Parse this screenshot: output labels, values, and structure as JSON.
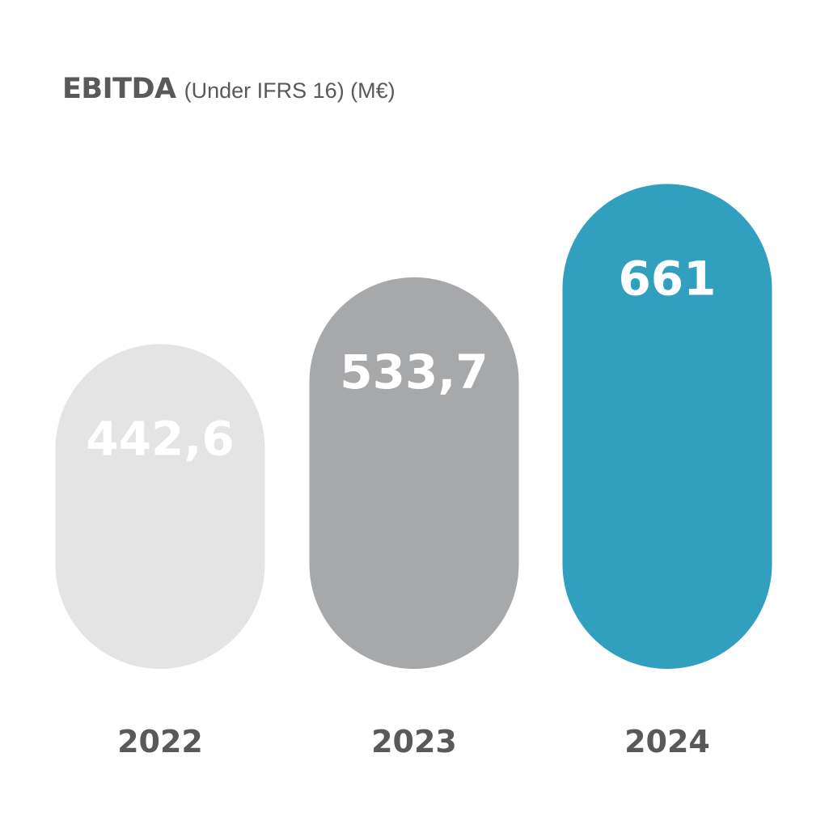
{
  "chart_data": {
    "type": "bar",
    "title": "EBITDA",
    "subtitle": "(Under  IFRS 16) (M€)",
    "categories": [
      "2022",
      "2023",
      "2024"
    ],
    "values": [
      442.6,
      533.7,
      661
    ],
    "value_labels": [
      "442,6",
      "533,7",
      "661"
    ],
    "bar_colors": [
      "#e4e4e4",
      "#a7a8aa",
      "#31a0bf"
    ],
    "grid": false,
    "legend": "none"
  }
}
